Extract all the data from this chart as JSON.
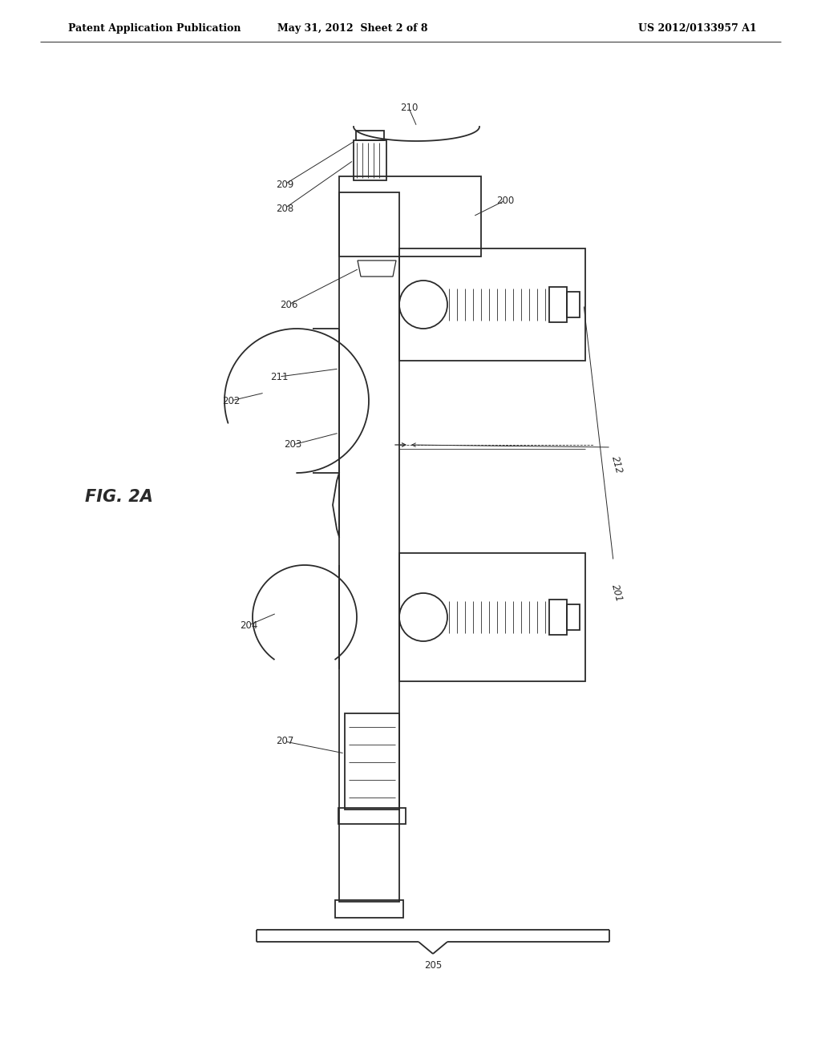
{
  "bg_color": "#ffffff",
  "line_color": "#2a2a2a",
  "header_left": "Patent Application Publication",
  "header_mid": "May 31, 2012  Sheet 2 of 8",
  "header_right": "US 2012/0133957 A1",
  "fig_label": "FIG. 2A"
}
